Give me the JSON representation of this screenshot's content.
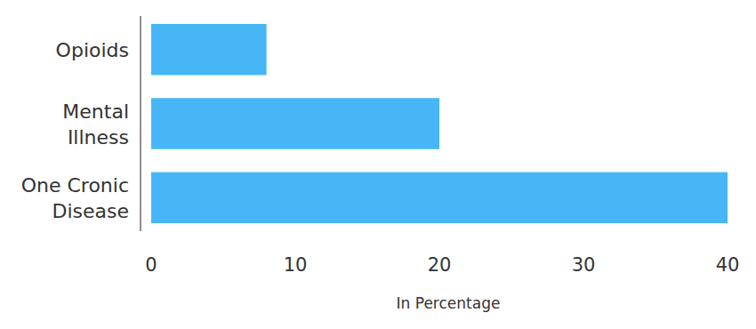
{
  "chart_data": {
    "type": "bar",
    "orientation": "horizontal",
    "categories": [
      "Opioids",
      "Mental\nIllness",
      "One Cronic\nDisease"
    ],
    "values": [
      8,
      20,
      40
    ],
    "color": "#47b6f6",
    "xlabel": "In Percentage",
    "xlim": [
      0,
      40
    ],
    "xticks": [
      0,
      10,
      20,
      30,
      40
    ],
    "grid": false
  }
}
